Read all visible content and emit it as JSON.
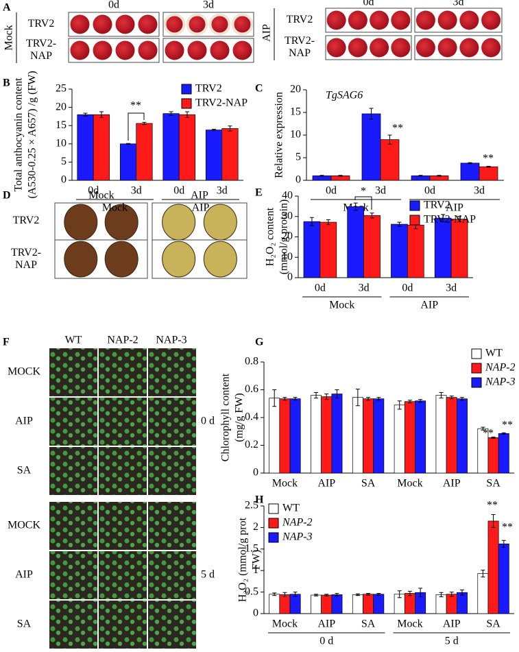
{
  "panels": {
    "A": {
      "label": "A",
      "columns": [
        "0d",
        "3d"
      ],
      "rows": [
        "TRV2",
        "TRV2-NAP"
      ],
      "groups": [
        "Mock",
        "AIP"
      ]
    },
    "D": {
      "label": "D",
      "columns": [
        "Mock",
        "AIP"
      ],
      "rows": [
        "TRV2",
        "TRV2-NAP"
      ]
    },
    "F": {
      "label": "F",
      "columns": [
        "WT",
        "NAP-2",
        "NAP-3"
      ],
      "rows": [
        "MOCK",
        "AIP",
        "SA",
        "MOCK",
        "AIP",
        "SA"
      ],
      "times": [
        "0 d",
        "5 d"
      ]
    }
  },
  "chart_data": [
    {
      "type": "bar",
      "label": "B",
      "ylabel": [
        "Total anthocyanin content",
        "(A530-0.25 × A657) /g (FW)"
      ],
      "categories": [
        "0d",
        "3d",
        "0d",
        "3d"
      ],
      "groups": [
        "Mock",
        "AIP"
      ],
      "series": [
        {
          "name": "TRV2",
          "color": "#1a1aff",
          "values": [
            18,
            10,
            18.3,
            13.8
          ],
          "errors": [
            0.4,
            0.1,
            0.5,
            0.2
          ]
        },
        {
          "name": "TRV2-NAP",
          "color": "#ff1a1a",
          "values": [
            18,
            15.6,
            18,
            14.2
          ],
          "errors": [
            0.8,
            0.3,
            0.8,
            0.7
          ]
        }
      ],
      "ylim": [
        0,
        25
      ],
      "yticks": [
        0,
        5,
        10,
        15,
        20,
        25
      ],
      "annotations": [
        "**"
      ]
    },
    {
      "type": "bar",
      "label": "C",
      "title": "TgSAG6",
      "ylabel": [
        "Relative expression"
      ],
      "categories": [
        "0d",
        "3d",
        "0d",
        "3d"
      ],
      "groups": [
        "Mock",
        "AIP"
      ],
      "series": [
        {
          "color": "#1a1aff",
          "values": [
            1,
            14.7,
            1,
            3.8
          ],
          "errors": [
            0.1,
            1.2,
            0.1,
            0.1
          ]
        },
        {
          "color": "#ff1a1a",
          "values": [
            1,
            9,
            1,
            3
          ],
          "errors": [
            0.1,
            1,
            0.1,
            0.1
          ]
        }
      ],
      "ylim": [
        0,
        20
      ],
      "yticks": [
        0,
        5,
        10,
        15,
        20
      ],
      "annotations": [
        "**",
        "**"
      ]
    },
    {
      "type": "bar",
      "label": "E",
      "ylabel": [
        "H₂O₂ content",
        "(mmol/g protein)"
      ],
      "categories": [
        "0d",
        "3d",
        "0d",
        "3d"
      ],
      "groups": [
        "Mock",
        "AIP"
      ],
      "series": [
        {
          "name": "TRV2",
          "color": "#1a1aff",
          "values": [
            27.5,
            34.8,
            26.2,
            29.2
          ],
          "errors": [
            2,
            1.8,
            1,
            1.8
          ]
        },
        {
          "name": "TRV2-NAP",
          "color": "#ff1a1a",
          "values": [
            27.2,
            30.5,
            25.8,
            28.7
          ],
          "errors": [
            1.2,
            1.2,
            1.8,
            1.3
          ]
        }
      ],
      "ylim": [
        0,
        40
      ],
      "yticks": [
        0,
        10,
        20,
        30,
        40
      ],
      "annotations": [
        "*"
      ]
    },
    {
      "type": "bar",
      "label": "G",
      "ylabel": [
        "Chlorophyll content",
        "(mg/g FW)"
      ],
      "categories": [
        "Mock",
        "AIP",
        "SA",
        "Mock",
        "AIP",
        "SA"
      ],
      "series": [
        {
          "name": "WT",
          "color": "#ffffff",
          "values": [
            0.54,
            0.56,
            0.545,
            0.49,
            0.56,
            0.32
          ],
          "errors": [
            0.06,
            0.02,
            0.06,
            0.03,
            0.02,
            0.01
          ]
        },
        {
          "name": "NAP-2",
          "italic": true,
          "color": "#ff1a1a",
          "values": [
            0.535,
            0.55,
            0.535,
            0.515,
            0.545,
            0.255
          ],
          "errors": [
            0.01,
            0.02,
            0.01,
            0.01,
            0.01,
            0.005
          ]
        },
        {
          "name": "NAP-3",
          "italic": true,
          "color": "#1a1aff",
          "values": [
            0.535,
            0.57,
            0.535,
            0.52,
            0.535,
            0.285
          ],
          "errors": [
            0.01,
            0.03,
            0.01,
            0.01,
            0.01,
            0.005
          ]
        }
      ],
      "ylim": [
        0,
        0.8
      ],
      "yticks": [
        0,
        0.2,
        0.4,
        0.6,
        0.8
      ],
      "annotations": [
        "**",
        "**"
      ]
    },
    {
      "type": "bar",
      "label": "H",
      "ylabel": [
        "H₂O₂ (mmol/g prot",
        "FW)"
      ],
      "categories": [
        "Mock",
        "AIP",
        "SA",
        "Mock",
        "AIP",
        "SA"
      ],
      "groups": [
        "0 d",
        "5 d"
      ],
      "series": [
        {
          "name": "WT",
          "color": "#ffffff",
          "values": [
            0.45,
            0.43,
            0.44,
            0.45,
            0.44,
            0.93
          ],
          "errors": [
            0.03,
            0.02,
            0.02,
            0.08,
            0.05,
            0.08
          ]
        },
        {
          "name": "NAP-2",
          "italic": true,
          "color": "#ff1a1a",
          "values": [
            0.44,
            0.43,
            0.45,
            0.47,
            0.45,
            2.15
          ],
          "errors": [
            0.05,
            0.02,
            0.02,
            0.05,
            0.05,
            0.15
          ]
        },
        {
          "name": "NAP-3",
          "italic": true,
          "color": "#1a1aff",
          "values": [
            0.45,
            0.44,
            0.45,
            0.49,
            0.49,
            1.62
          ],
          "errors": [
            0.05,
            0.03,
            0.02,
            0.1,
            0.06,
            0.08
          ]
        }
      ],
      "ylim": [
        0,
        2.5
      ],
      "yticks": [
        0,
        0.5,
        1,
        1.5,
        2,
        2.5
      ],
      "annotations": [
        "**",
        "**"
      ]
    }
  ]
}
